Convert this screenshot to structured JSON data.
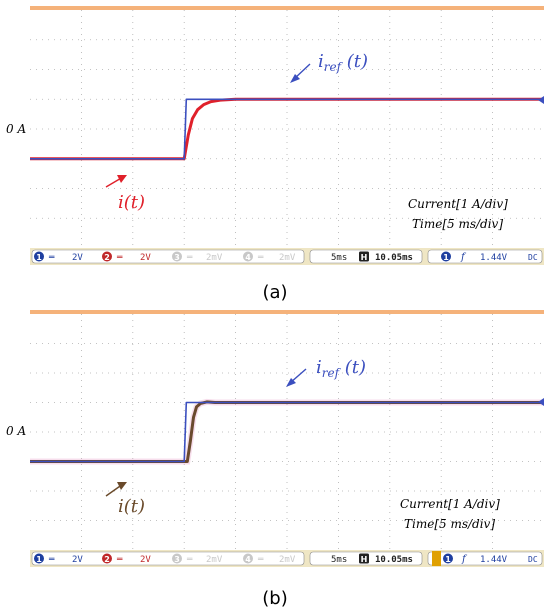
{
  "chart_data": [
    {
      "type": "line",
      "panel_label": "(a)",
      "zero_label": "0 A",
      "ref_label_main": "i",
      "ref_label_sub": "ref",
      "ref_label_tail": " (t)",
      "meas_label": "i(t)",
      "scale_current": "Current[1 A/div]",
      "scale_time": "Time[5 ms/div]",
      "x_unit": "ms",
      "y_unit": "A",
      "xlim": [
        0,
        50
      ],
      "ylim": [
        -4,
        4
      ],
      "series": [
        {
          "role": "reference",
          "color": "#3b4fbf",
          "x": [
            0,
            15.0,
            15.2,
            50
          ],
          "y": [
            -1.0,
            -1.0,
            1.0,
            1.0
          ]
        },
        {
          "role": "measured",
          "color": "#e0202a",
          "x": [
            0,
            15.0,
            15.4,
            15.8,
            16.3,
            16.9,
            17.6,
            18.5,
            20.0,
            50
          ],
          "y": [
            -1.0,
            -1.0,
            -0.2,
            0.35,
            0.65,
            0.82,
            0.92,
            0.97,
            1.0,
            1.0
          ]
        }
      ],
      "status_bar": {
        "ch1_num": "1",
        "ch1_volts": "2V",
        "ch2_num": "2",
        "ch2_volts": "2V",
        "ch3_num": "3",
        "ch3_volts": "2mV",
        "ch4_num": "4",
        "ch4_volts": "2mV",
        "timebase": "5ms",
        "h_symbol": "H",
        "delay": "10.05ms",
        "trig_num": "1",
        "trig_symbol": "f",
        "trig_level": "1.44V",
        "coupling": "DC"
      }
    },
    {
      "type": "line",
      "panel_label": "(b)",
      "zero_label": "0 A",
      "ref_label_main": "i",
      "ref_label_sub": "ref",
      "ref_label_tail": " (t)",
      "meas_label": "i(t)",
      "scale_current": "Current[1 A/div]",
      "scale_time": "Time[5 ms/div]",
      "x_unit": "ms",
      "y_unit": "A",
      "xlim": [
        0,
        50
      ],
      "ylim": [
        -4,
        4
      ],
      "series": [
        {
          "role": "reference",
          "color": "#3b4fbf",
          "x": [
            0,
            15.0,
            15.2,
            50
          ],
          "y": [
            -1.0,
            -1.0,
            1.0,
            1.0
          ]
        },
        {
          "role": "measured",
          "color": "#5a3a1a",
          "x": [
            0,
            15.3,
            15.6,
            15.9,
            16.2,
            16.6,
            17.2,
            18.0,
            50
          ],
          "y": [
            -1.0,
            -1.0,
            -0.3,
            0.5,
            0.85,
            0.97,
            1.02,
            1.0,
            1.0
          ]
        }
      ],
      "status_bar": {
        "ch1_num": "1",
        "ch1_volts": "2V",
        "ch2_num": "2",
        "ch2_volts": "2V",
        "ch3_num": "3",
        "ch3_volts": "2mV",
        "ch4_num": "4",
        "ch4_volts": "2mV",
        "timebase": "5ms",
        "h_symbol": "H",
        "delay": "10.05ms",
        "trig_num": "1",
        "trig_symbol": "f",
        "trig_level": "1.44V",
        "coupling": "DC"
      }
    }
  ]
}
